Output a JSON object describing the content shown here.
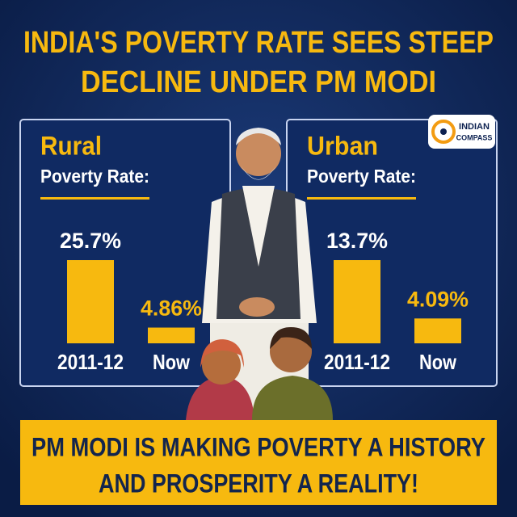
{
  "title": [
    "INDIA'S POVERTY RATE SEES STEEP",
    "DECLINE UNDER PM MODI"
  ],
  "logo": [
    "INDIAN",
    "COMPASS"
  ],
  "chart_data": [
    {
      "type": "bar",
      "title": "Rural",
      "subtitle": "Poverty Rate:",
      "categories": [
        "2011-12",
        "Now"
      ],
      "values": [
        25.7,
        4.86
      ],
      "value_labels": [
        "25.7%",
        "4.86%"
      ],
      "color": "#f7b90f"
    },
    {
      "type": "bar",
      "title": "Urban",
      "subtitle": "Poverty Rate:",
      "categories": [
        "2011-12",
        "Now"
      ],
      "values": [
        13.7,
        4.09
      ],
      "value_labels": [
        "13.7%",
        "4.09%"
      ],
      "color": "#f7b90f"
    }
  ],
  "footer": [
    "PM MODI IS MAKING POVERTY A HISTORY",
    "AND PROSPERITY A REALITY!"
  ]
}
